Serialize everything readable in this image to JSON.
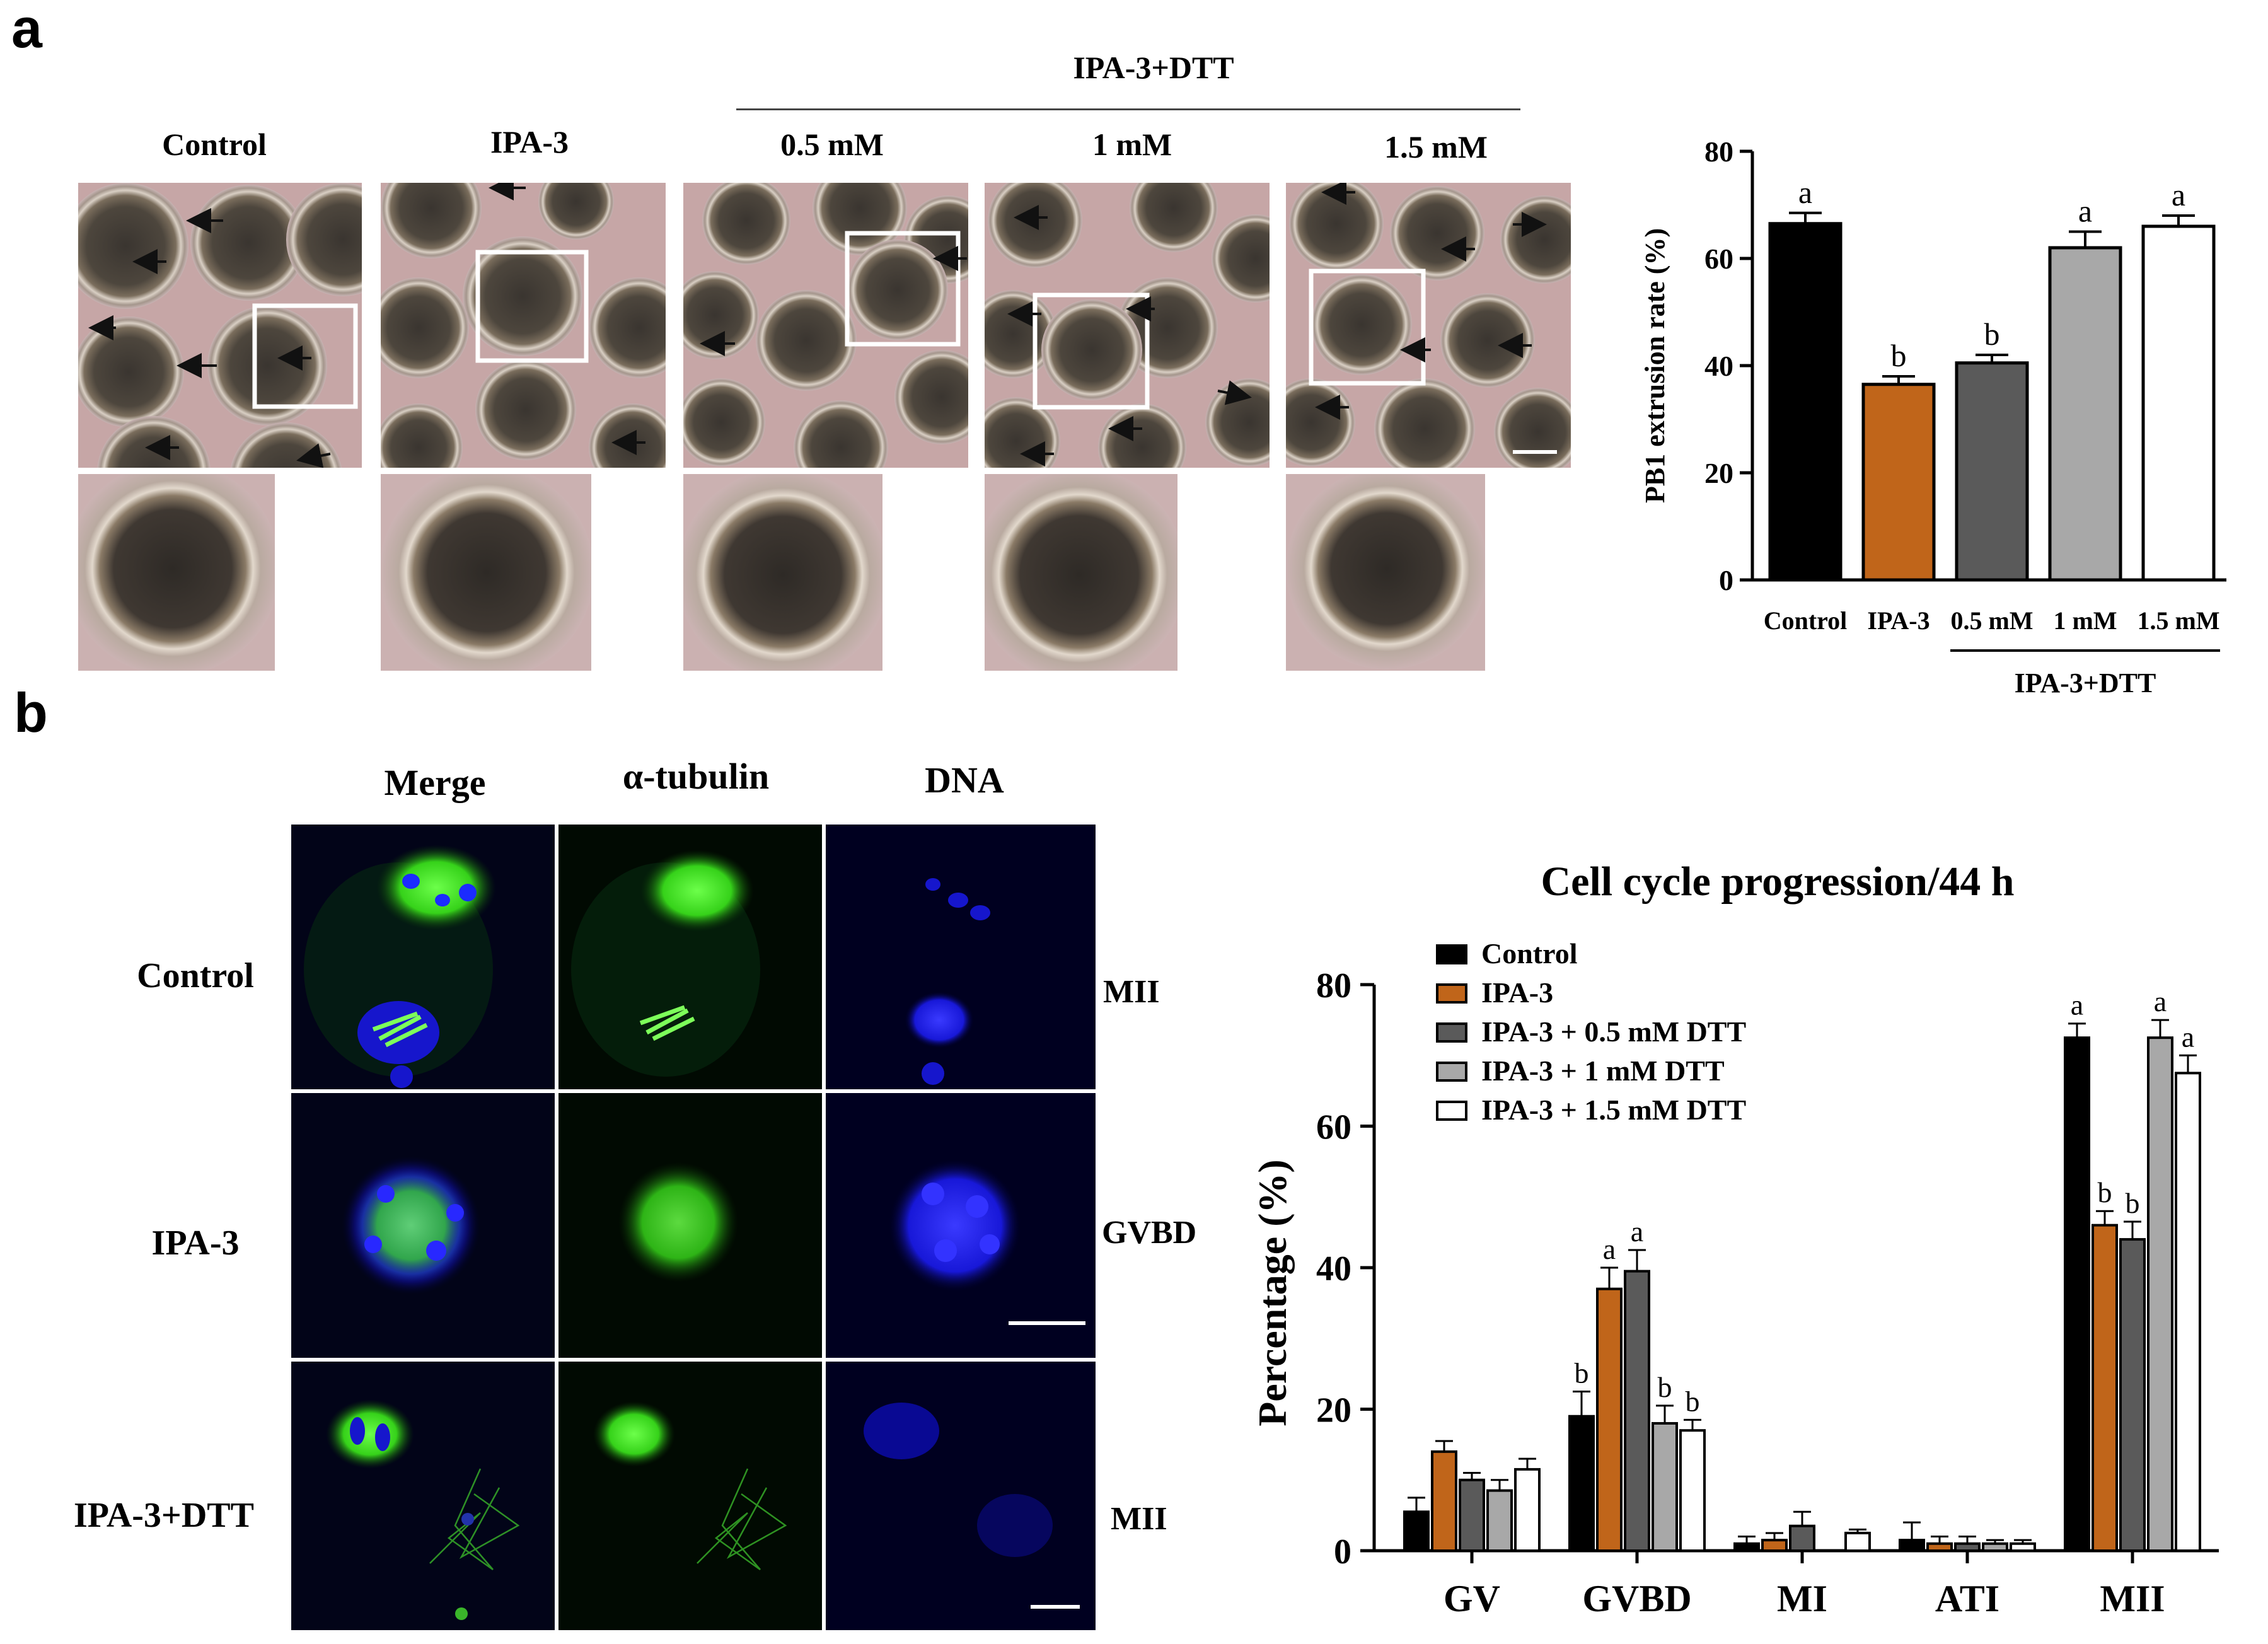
{
  "panel_a": {
    "letter": "a",
    "group_header": "IPA-3+DTT",
    "columns": [
      "Control",
      "IPA-3",
      "0.5 mM",
      "1 mM",
      "1.5 mM"
    ]
  },
  "panel_b": {
    "letter": "b",
    "columns": [
      "Merge",
      "α-tubulin",
      "DNA"
    ],
    "rows": [
      "Control",
      "IPA-3",
      "IPA-3+DTT"
    ],
    "stages": [
      "MII",
      "GVBD",
      "MII"
    ]
  },
  "colors": {
    "control": "#000000",
    "ipa3": "#c0651a",
    "dtt_0_5": "#5a5a5a",
    "dtt_1": "#a8a8a8",
    "dtt_1_5": "#ffffff",
    "microscopy_bg": "#c9a9a9",
    "fluor_green": "#39d21f",
    "fluor_blue": "#1a1aff"
  },
  "chart_data": [
    {
      "type": "bar",
      "ylabel": "PB1 extrusion rate (%)",
      "ylim": [
        0,
        80
      ],
      "yticks": [
        0,
        20,
        40,
        60,
        80
      ],
      "categories": [
        "Control",
        "IPA-3",
        "0.5 mM",
        "1 mM",
        "1.5 mM"
      ],
      "group_label": "IPA-3+DTT",
      "values": [
        66.5,
        36.5,
        40.5,
        62,
        66
      ],
      "errors": [
        2,
        1.5,
        1.5,
        3,
        2
      ],
      "letters": [
        "a",
        "b",
        "b",
        "a",
        "a"
      ]
    },
    {
      "type": "bar",
      "title": "Cell cycle progression/44 h",
      "ylabel": "Percentage (%)",
      "ylim": [
        0,
        80
      ],
      "yticks": [
        0,
        20,
        40,
        60,
        80
      ],
      "categories": [
        "GV",
        "GVBD",
        "MI",
        "ATI",
        "MII"
      ],
      "legend_position": "top-left",
      "series": [
        {
          "name": "Control",
          "values": [
            5.5,
            19,
            1,
            1.5,
            72.5
          ],
          "errors": [
            2,
            3.5,
            1,
            2.5,
            2
          ],
          "letters": [
            "",
            "b",
            "",
            "",
            "a"
          ]
        },
        {
          "name": "IPA-3",
          "values": [
            14,
            37,
            1.5,
            1,
            46
          ],
          "errors": [
            1.5,
            3,
            1,
            1,
            2
          ],
          "letters": [
            "",
            "a",
            "",
            "",
            "b"
          ]
        },
        {
          "name": "IPA-3 + 0.5 mM DTT",
          "values": [
            10,
            39.5,
            3.5,
            1,
            44
          ],
          "errors": [
            1,
            3,
            2,
            1,
            2.5
          ],
          "letters": [
            "",
            "a",
            "",
            "",
            "b"
          ]
        },
        {
          "name": "IPA-3 +   1 mM DTT",
          "values": [
            8.5,
            18,
            0,
            1,
            72.5
          ],
          "errors": [
            1.5,
            2.5,
            0,
            0.5,
            2.5
          ],
          "letters": [
            "",
            "b",
            "",
            "",
            "a"
          ]
        },
        {
          "name": "IPA-3 + 1.5 mM DTT",
          "values": [
            11.5,
            17,
            2.5,
            1,
            67.5
          ],
          "errors": [
            1.5,
            1.5,
            0.5,
            0.5,
            2.5
          ],
          "letters": [
            "",
            "b",
            "",
            "",
            "a"
          ]
        }
      ]
    }
  ]
}
